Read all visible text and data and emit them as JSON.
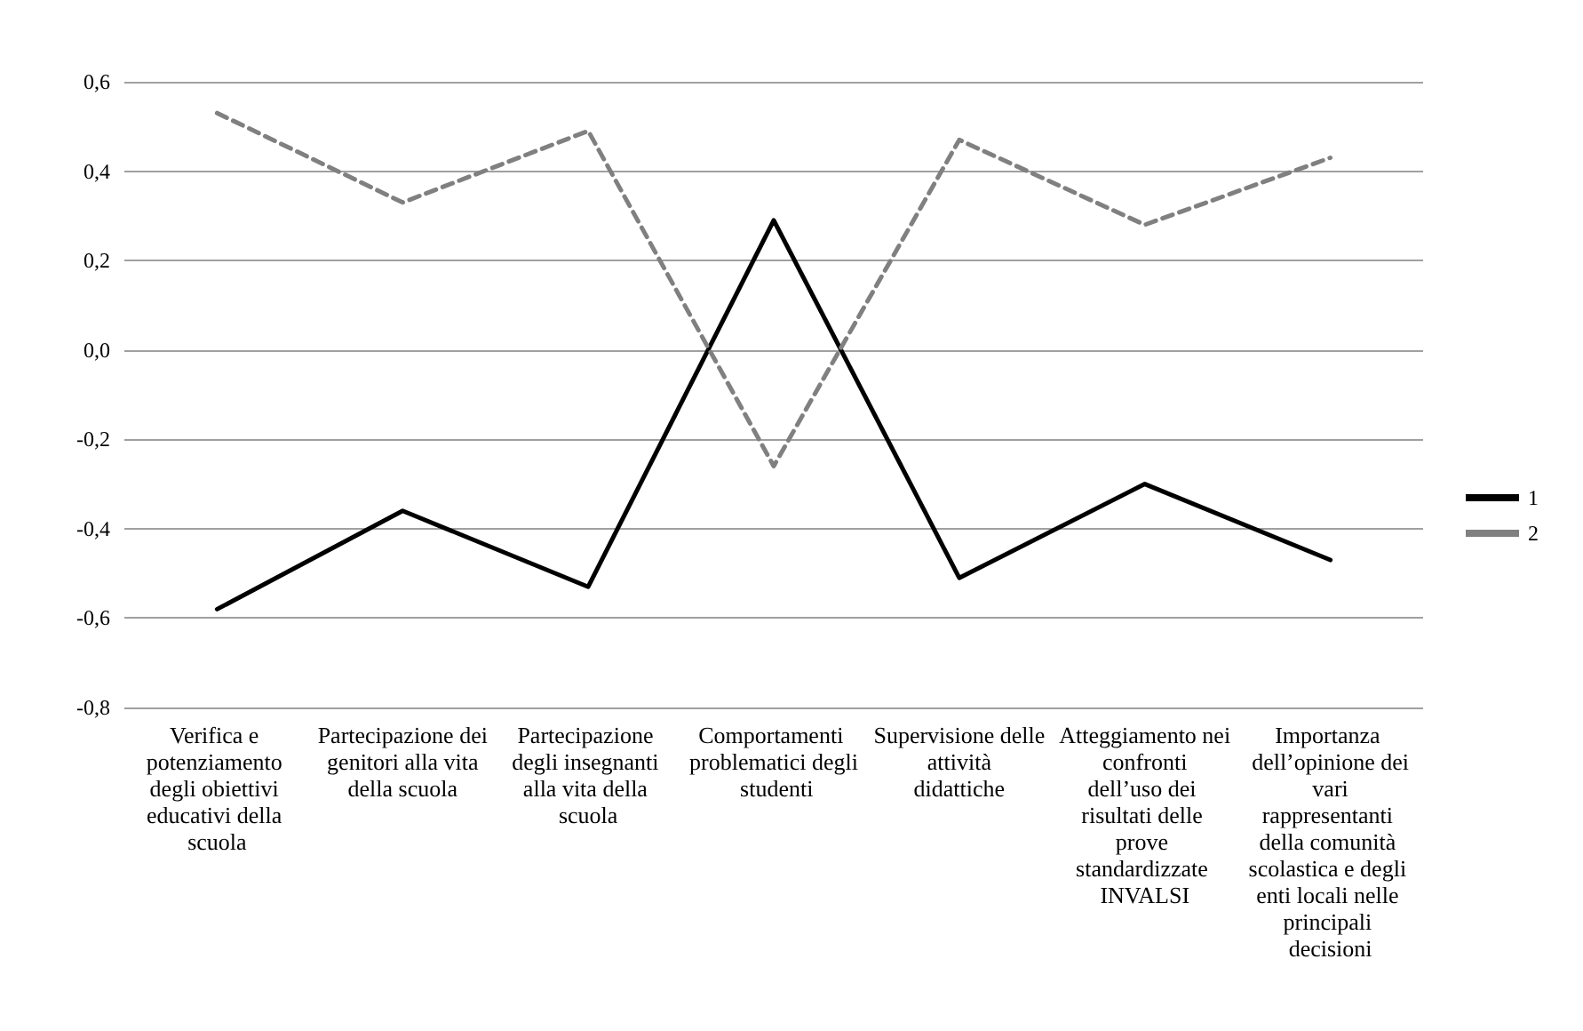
{
  "chart_data": {
    "type": "line",
    "categories": [
      "Verifica e potenziamento degli obiettivi educativi della scuola",
      "Partecipazione dei genitori alla vita della scuola",
      "Partecipazione degli insegnanti alla vita della scuola",
      "Comportamenti problematici degli studenti",
      "Supervisione delle attività didattiche",
      "Atteggiamento nei confronti dell’uso dei risultati delle prove standardizzate INVALSI",
      "Importanza dell’opinione dei vari rappresentanti della comunità scolastica e degli enti locali nelle principali decisioni"
    ],
    "series": [
      {
        "name": "1",
        "color": "#000000",
        "line_style": "solid",
        "values": [
          -0.58,
          -0.36,
          -0.53,
          0.29,
          -0.51,
          -0.3,
          -0.47
        ]
      },
      {
        "name": "2",
        "color": "#808080",
        "line_style": "dashed",
        "values": [
          0.53,
          0.33,
          0.49,
          -0.26,
          0.47,
          0.28,
          0.43
        ]
      }
    ],
    "ylim": [
      -0.8,
      0.6
    ],
    "yticks": [
      {
        "value": -0.8,
        "label": "-0,8"
      },
      {
        "value": -0.6,
        "label": "-0,6"
      },
      {
        "value": -0.4,
        "label": "-0,4"
      },
      {
        "value": -0.2,
        "label": "-0,2"
      },
      {
        "value": 0,
        "label": "0,0"
      },
      {
        "value": 0.2,
        "label": "0,2"
      },
      {
        "value": 0.4,
        "label": "0,4"
      },
      {
        "value": 0.6,
        "label": "0,6"
      }
    ],
    "grid": "y",
    "legend": "right",
    "marker": "none"
  }
}
